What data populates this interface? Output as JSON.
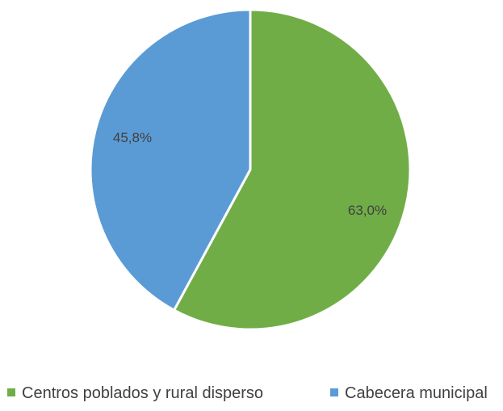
{
  "chart_data": {
    "type": "pie",
    "title": "",
    "slices": [
      {
        "label": "Centros poblados y rural disperso",
        "value": 63.0,
        "display": "63,0%",
        "color": "#70ad47"
      },
      {
        "label": "Cabecera municipal",
        "value": 45.8,
        "display": "45,8%",
        "color": "#5b9bd5"
      }
    ],
    "start_angle_deg": 0,
    "direction": "clockwise",
    "legend": {
      "position": "bottom",
      "entries": [
        "Centros poblados y rural disperso",
        "Cabecera municipal"
      ]
    }
  }
}
